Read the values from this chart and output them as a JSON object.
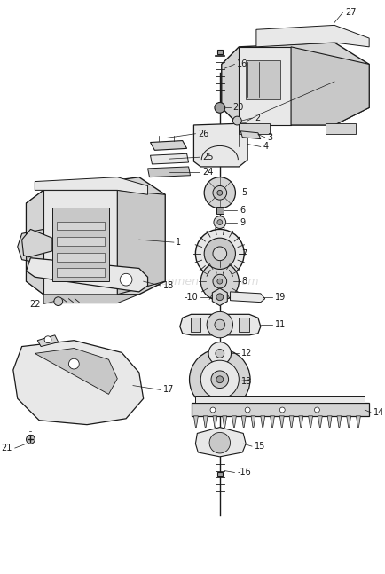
{
  "bg_color": "#ffffff",
  "line_color": "#1a1a1a",
  "gray_fill": "#c8c8c8",
  "light_fill": "#e8e8e8",
  "mid_fill": "#d4d4d4",
  "dark_fill": "#a0a0a0",
  "watermark": "ereplacementparts.com",
  "watermark_color": "#d0d0d0",
  "figsize": [
    4.35,
    6.47
  ],
  "dpi": 100
}
